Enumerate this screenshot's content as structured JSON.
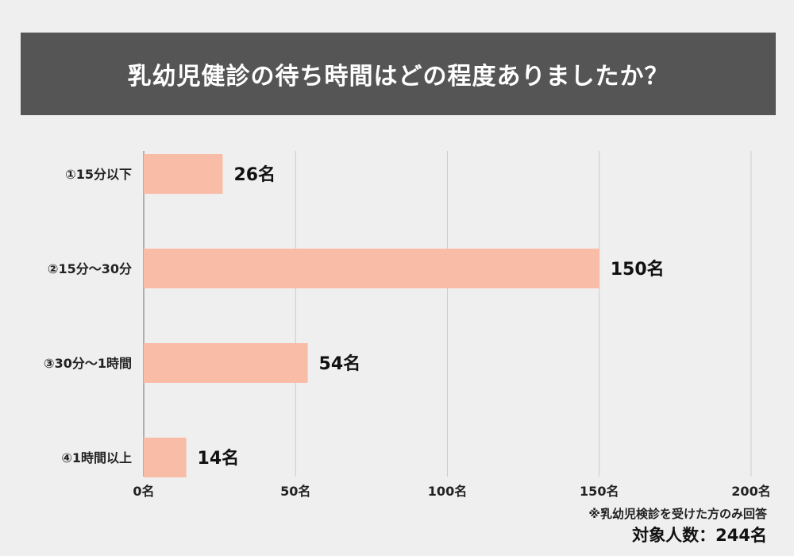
{
  "title": "乳幼児健診の待ち時間はどの程度ありましたか？",
  "note": "※乳幼児検診を受けた方のみ回答",
  "total": "対象人数：244名",
  "colors": {
    "bar": "#f9bca6",
    "title_bg": "#555555",
    "background": "#efefef",
    "grid": "#cccccc"
  },
  "chart_data": {
    "type": "bar",
    "orientation": "horizontal",
    "categories": [
      "①15分以下",
      "②15分～30分",
      "③30分～1時間",
      "④1時間以上"
    ],
    "values": [
      26,
      150,
      54,
      14
    ],
    "value_labels": [
      "26名",
      "150名",
      "54名",
      "14名"
    ],
    "xlim": [
      0,
      200
    ],
    "x_ticks": [
      0,
      50,
      100,
      150,
      200
    ],
    "x_tick_labels": [
      "0名",
      "50名",
      "100名",
      "150名",
      "200名"
    ],
    "grid": true
  }
}
